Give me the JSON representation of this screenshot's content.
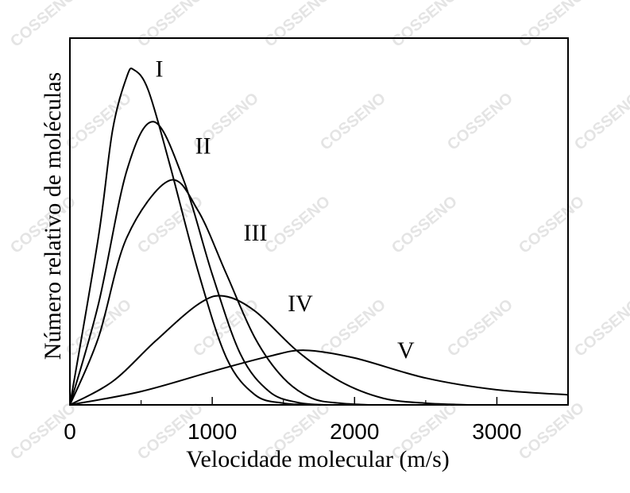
{
  "chart_data": {
    "type": "line",
    "title": "",
    "xlabel": "Velocidade molecular (m/s)",
    "ylabel": "Número relativo de moléculas",
    "xlim": [
      0,
      3500
    ],
    "ylim": [
      0,
      1.0
    ],
    "xticks": [
      0,
      1000,
      2000,
      3000
    ],
    "xtick_labels": [
      "0",
      "1000",
      "2000",
      "3000"
    ],
    "yticks_shown": false,
    "grid": false,
    "legend": "none",
    "series": [
      {
        "name": "I",
        "peak_x": 450,
        "peak_y": 1.0,
        "x": [
          0,
          200,
          300,
          400,
          450,
          550,
          700,
          900,
          1100,
          1300,
          1500,
          1700
        ],
        "y": [
          0,
          0.5,
          0.82,
          0.98,
          1.0,
          0.94,
          0.72,
          0.4,
          0.14,
          0.03,
          0.005,
          0
        ]
      },
      {
        "name": "II",
        "peak_x": 590,
        "peak_y": 0.845,
        "x": [
          0,
          200,
          400,
          590,
          800,
          1000,
          1200,
          1400,
          1600,
          1800
        ],
        "y": [
          0,
          0.3,
          0.7,
          0.845,
          0.67,
          0.39,
          0.15,
          0.04,
          0.007,
          0
        ]
      },
      {
        "name": "III",
        "peak_x": 700,
        "peak_y": 0.67,
        "x": [
          0,
          200,
          400,
          700,
          900,
          1100,
          1300,
          1500,
          1700,
          1900,
          2100
        ],
        "y": [
          0,
          0.2,
          0.5,
          0.67,
          0.58,
          0.39,
          0.2,
          0.08,
          0.02,
          0.005,
          0
        ]
      },
      {
        "name": "IV",
        "peak_x": 1080,
        "peak_y": 0.325,
        "x": [
          0,
          300,
          600,
          900,
          1080,
          1300,
          1600,
          1900,
          2200,
          2500,
          2800
        ],
        "y": [
          0,
          0.07,
          0.19,
          0.3,
          0.325,
          0.28,
          0.16,
          0.07,
          0.02,
          0.005,
          0
        ]
      },
      {
        "name": "V",
        "peak_x": 1650,
        "peak_y": 0.163,
        "x": [
          0,
          500,
          1000,
          1400,
          1650,
          2000,
          2500,
          3000,
          3500
        ],
        "y": [
          0,
          0.04,
          0.1,
          0.145,
          0.163,
          0.14,
          0.08,
          0.045,
          0.03
        ]
      }
    ],
    "labels": [
      {
        "text": "I",
        "x": 600,
        "y": 0.98
      },
      {
        "text": "II",
        "x": 880,
        "y": 0.75
      },
      {
        "text": "III",
        "x": 1220,
        "y": 0.49
      },
      {
        "text": "IV",
        "x": 1530,
        "y": 0.28
      },
      {
        "text": "V",
        "x": 2300,
        "y": 0.14
      }
    ]
  },
  "watermark": {
    "text": "COSSENO",
    "color": "#e4e4e4"
  },
  "colors": {
    "line": "#000000",
    "background": "#ffffff"
  }
}
